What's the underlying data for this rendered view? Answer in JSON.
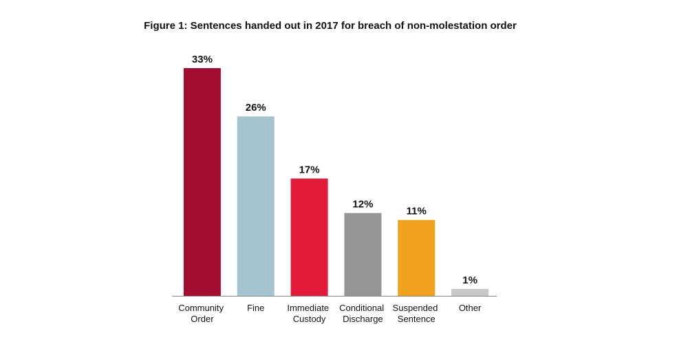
{
  "chart_data": {
    "type": "bar",
    "title": "Figure 1: Sentences handed out in 2017 for breach of non-molestation order",
    "categories": [
      "Community Order",
      "Fine",
      "Immediate Custody",
      "Conditional Discharge",
      "Suspended Sentence",
      "Other"
    ],
    "values": [
      33,
      26,
      17,
      12,
      11,
      1
    ],
    "value_labels": [
      "33%",
      "26%",
      "17%",
      "12%",
      "11%",
      "1%"
    ],
    "colors": [
      "#a50d30",
      "#a4c4d0",
      "#e11b38",
      "#959595",
      "#f0a21f",
      "#c8c8c8"
    ]
  }
}
